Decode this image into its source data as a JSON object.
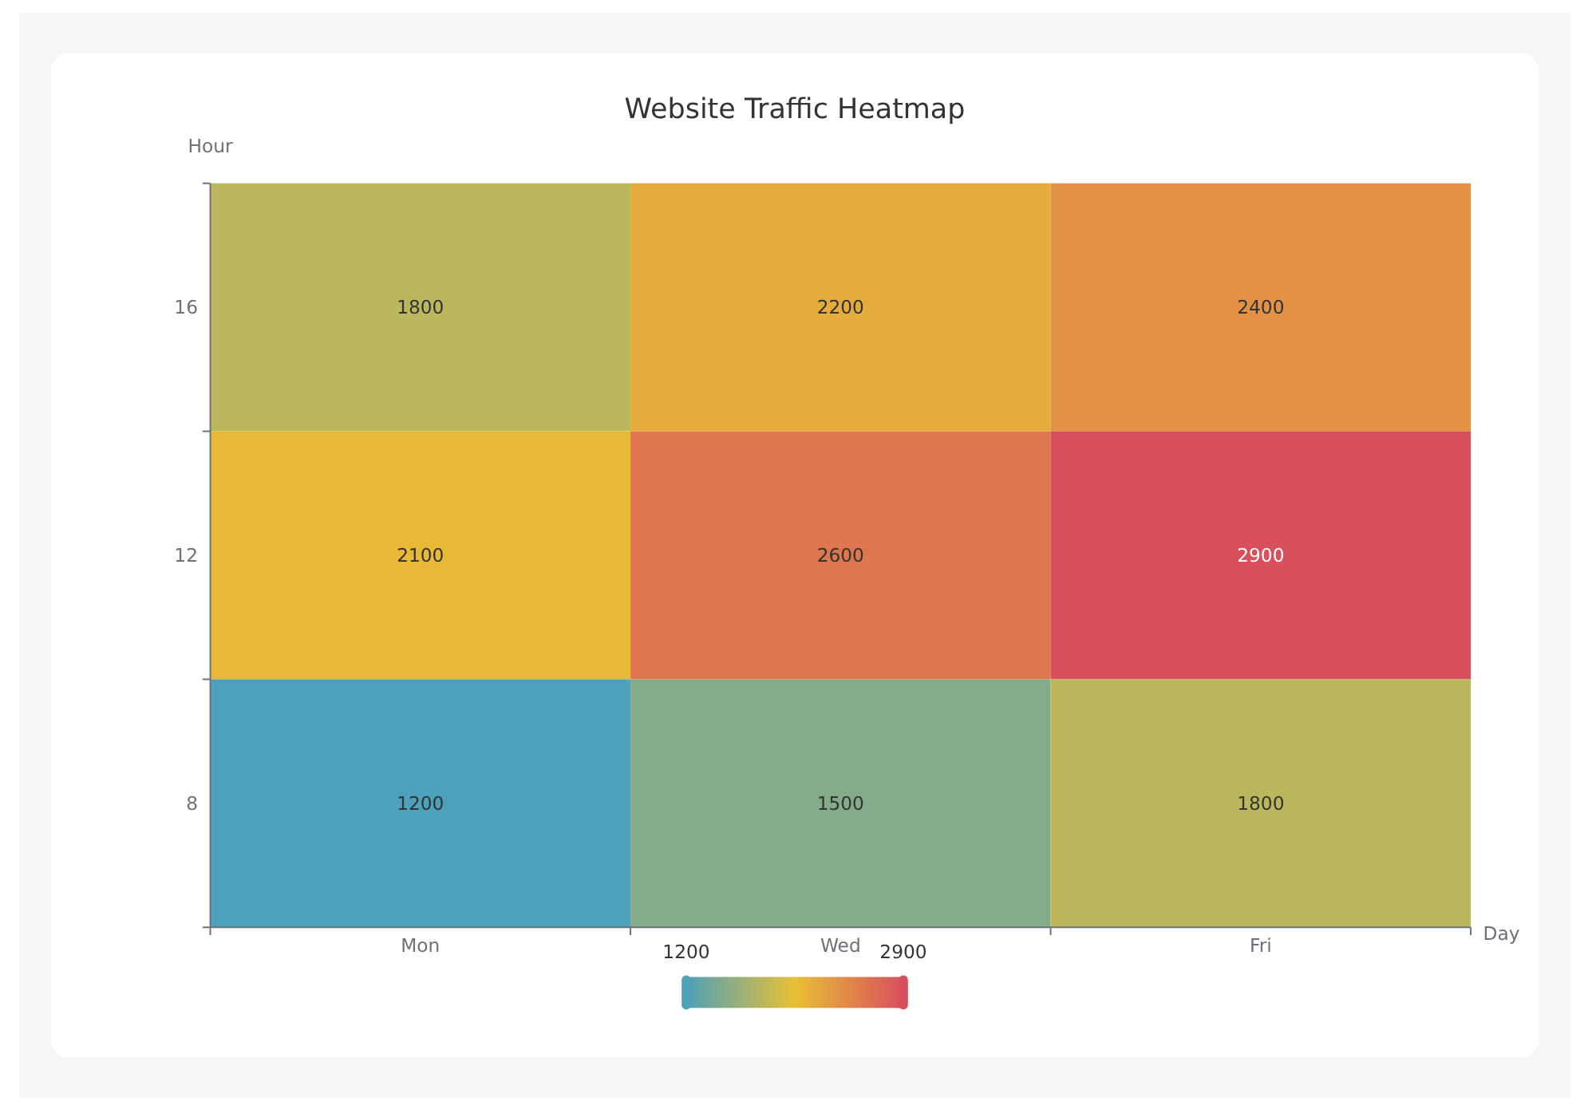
{
  "chart_data": {
    "type": "heatmap",
    "title": "Website Traffic Heatmap",
    "xlabel": "Day",
    "ylabel": "Hour",
    "categories": [
      "Mon",
      "Wed",
      "Fri"
    ],
    "y_categories": [
      "16",
      "12",
      "8"
    ],
    "cells": [
      [
        1800,
        2200,
        2400
      ],
      [
        2100,
        2600,
        2900
      ],
      [
        1200,
        1500,
        1800
      ]
    ],
    "clim": [
      1200,
      2900
    ],
    "cticks": [
      1200,
      2900
    ],
    "data_labels": true
  }
}
